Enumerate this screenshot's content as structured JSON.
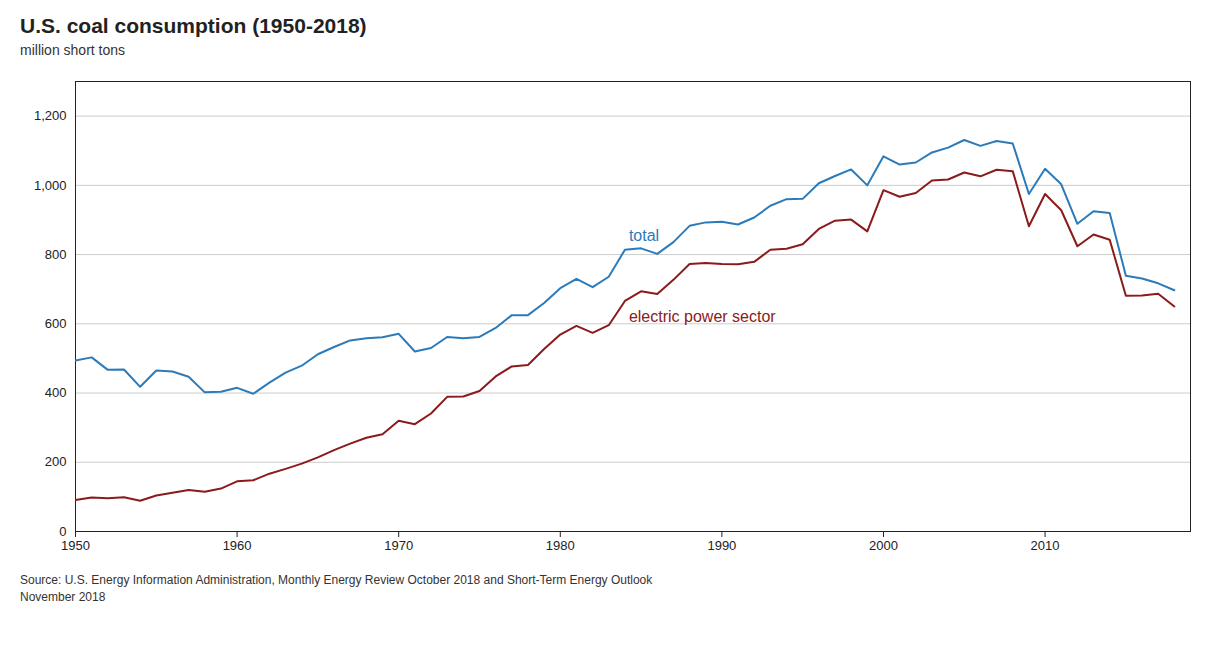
{
  "chart_data": {
    "type": "line",
    "title": "U.S. coal consumption (1950-2018)",
    "subtitle": "million short tons",
    "annotations": [
      "Source: U.S. Energy Information Administration, Monthly Energy Review October 2018 and Short-Term Energy Outlook",
      "November 2018"
    ],
    "x": [
      1950,
      1951,
      1952,
      1953,
      1954,
      1955,
      1956,
      1957,
      1958,
      1959,
      1960,
      1961,
      1962,
      1963,
      1964,
      1965,
      1966,
      1967,
      1968,
      1969,
      1970,
      1971,
      1972,
      1973,
      1974,
      1975,
      1976,
      1977,
      1978,
      1979,
      1980,
      1981,
      1982,
      1983,
      1984,
      1985,
      1986,
      1987,
      1988,
      1989,
      1990,
      1991,
      1992,
      1993,
      1994,
      1995,
      1996,
      1997,
      1998,
      1999,
      2000,
      2001,
      2002,
      2003,
      2004,
      2005,
      2006,
      2007,
      2008,
      2009,
      2010,
      2011,
      2012,
      2013,
      2014,
      2015,
      2016,
      2017,
      2018
    ],
    "series": [
      {
        "name": "total",
        "color": "#2b7bba",
        "values": [
          494,
          503,
          467,
          468,
          418,
          465,
          462,
          447,
          402,
          404,
          415,
          398,
          430,
          459,
          479,
          512,
          533,
          552,
          558,
          561,
          571,
          520,
          530,
          562,
          558,
          562,
          588,
          625,
          625,
          660,
          703,
          730,
          706,
          736,
          814,
          818,
          802,
          836,
          883,
          893,
          895,
          887,
          907,
          941,
          960,
          961,
          1006,
          1027,
          1046,
          1000,
          1084,
          1060,
          1066,
          1095,
          1109,
          1131,
          1114,
          1128,
          1121,
          975,
          1048,
          1003,
          889,
          925,
          920,
          739,
          731,
          717,
          697
        ]
      },
      {
        "name": "electric power sector",
        "color": "#8b1a1a",
        "values": [
          91,
          98,
          96,
          99,
          89,
          104,
          112,
          120,
          115,
          124,
          145,
          148,
          167,
          181,
          196,
          214,
          235,
          254,
          271,
          281,
          320,
          310,
          341,
          389,
          390,
          406,
          448,
          477,
          481,
          527,
          569,
          594,
          574,
          596,
          666,
          694,
          686,
          727,
          773,
          776,
          773,
          772,
          779,
          814,
          817,
          830,
          874,
          898,
          901,
          867,
          986,
          967,
          978,
          1014,
          1017,
          1037,
          1026,
          1045,
          1041,
          882,
          975,
          928,
          824,
          858,
          843,
          681,
          682,
          687,
          650
        ]
      }
    ],
    "xlim": [
      1950,
      2019
    ],
    "xticks": [
      1950,
      1960,
      1970,
      1980,
      1990,
      2000,
      2010
    ],
    "ylim": [
      0,
      1300
    ],
    "yticks": [
      0,
      200,
      400,
      600,
      800,
      {
        "value": 1000,
        "label": "1,000"
      },
      {
        "value": 1200,
        "label": "1,200"
      }
    ],
    "grid": true
  }
}
